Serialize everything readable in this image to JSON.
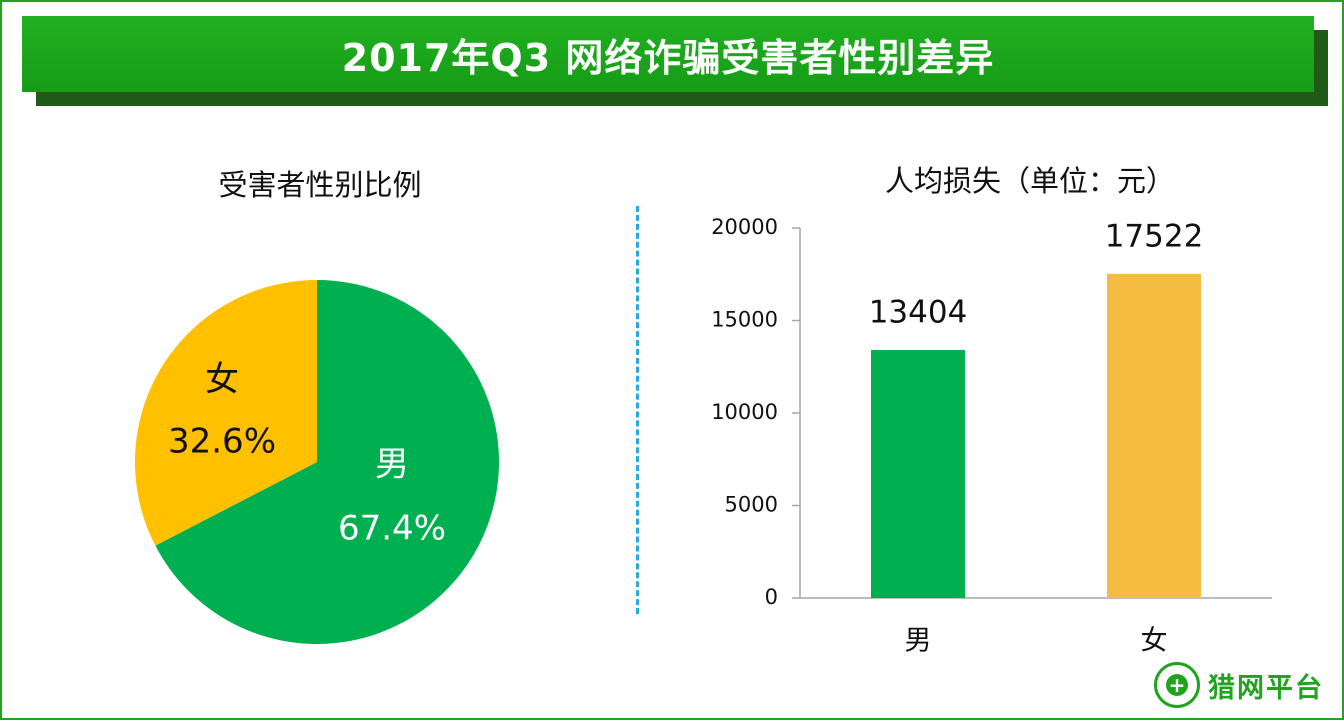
{
  "page": {
    "title": "2017年Q3 网络诈骗受害者性别差异",
    "logo_text": "猎网平台"
  },
  "chart_data": [
    {
      "type": "pie",
      "title": "受害者性别比例",
      "slices": [
        {
          "label": "男",
          "value": 67.4,
          "display": "67.4%",
          "color": "#00b050"
        },
        {
          "label": "女",
          "value": 32.6,
          "display": "32.6%",
          "color": "#ffc000"
        }
      ]
    },
    {
      "type": "bar",
      "title": "人均损失（单位：元）",
      "categories": [
        "男",
        "女"
      ],
      "values": [
        13404,
        17522
      ],
      "value_labels": [
        "13404",
        "17522"
      ],
      "colors": [
        "#00b050",
        "#f4bd41"
      ],
      "ylim": [
        0,
        20000
      ],
      "yticks": [
        0,
        5000,
        10000,
        15000,
        20000
      ],
      "grid": false
    }
  ]
}
